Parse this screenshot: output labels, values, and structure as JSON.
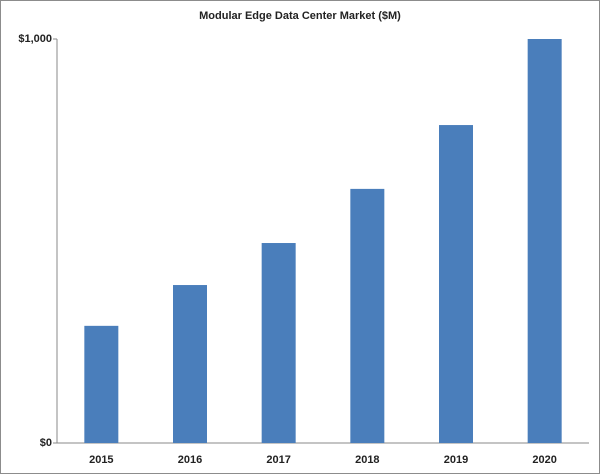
{
  "chart_data": {
    "type": "bar",
    "title": "Modular Edge Data Center Market ($M)",
    "categories": [
      "2015",
      "2016",
      "2017",
      "2018",
      "2019",
      "2020"
    ],
    "values": [
      290,
      391,
      495,
      629,
      787,
      1000
    ],
    "color": "#4a7ebb",
    "ylim": [
      0,
      1000
    ],
    "yticks": [
      {
        "value": 0,
        "label": "$0"
      },
      {
        "value": 1000,
        "label": "$1,000"
      }
    ],
    "grid": false
  }
}
